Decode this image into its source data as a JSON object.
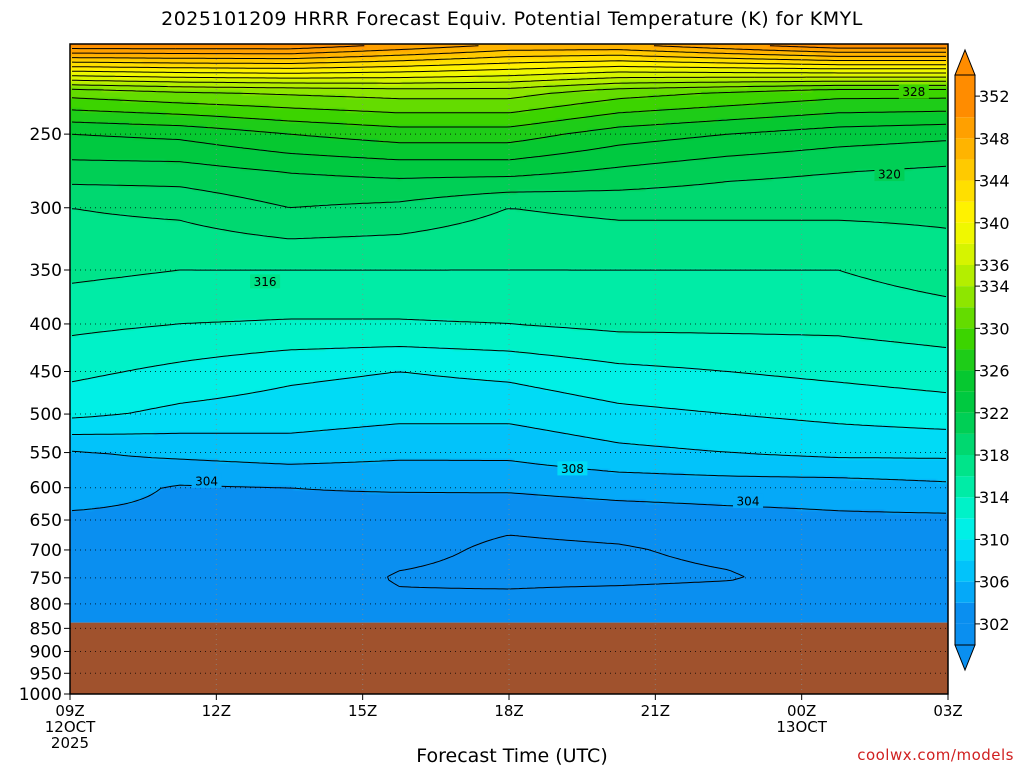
{
  "title": "2025101209 HRRR Forecast Equiv. Potential Temperature (K) for KMYL",
  "credit": "coolwx.com/models",
  "chart_data": {
    "type": "heatmap",
    "title": "2025101209 HRRR Forecast Equiv. Potential Temperature (K) for KMYL",
    "xlabel": "Forecast Time (UTC)",
    "ylabel": "",
    "y_axis": "pressure (hPa), reversed",
    "ylim": [
      1000,
      200
    ],
    "x_ticks": [
      {
        "hour": 0,
        "label": "09Z",
        "sub": [
          "12OCT",
          "2025"
        ]
      },
      {
        "hour": 3,
        "label": "12Z",
        "sub": []
      },
      {
        "hour": 6,
        "label": "15Z",
        "sub": []
      },
      {
        "hour": 9,
        "label": "18Z",
        "sub": []
      },
      {
        "hour": 12,
        "label": "21Z",
        "sub": []
      },
      {
        "hour": 15,
        "label": "00Z",
        "sub": [
          "13OCT"
        ]
      },
      {
        "hour": 18,
        "label": "03Z",
        "sub": []
      }
    ],
    "y_ticks": [
      250,
      300,
      350,
      400,
      450,
      500,
      550,
      600,
      650,
      700,
      750,
      800,
      850,
      900,
      950,
      1000
    ],
    "grid": true,
    "surface_pressure": 838,
    "contour_interval": 2,
    "colorbar": {
      "ticks": [
        302,
        306,
        310,
        314,
        318,
        322,
        326,
        330,
        334,
        336,
        340,
        344,
        348,
        352
      ],
      "bins": [
        {
          "min": 300,
          "max": 302,
          "color": "#0a8ff0"
        },
        {
          "min": 302,
          "max": 304,
          "color": "#0a8ff0"
        },
        {
          "min": 304,
          "max": 306,
          "color": "#05a9f8"
        },
        {
          "min": 306,
          "max": 308,
          "color": "#02c3fa"
        },
        {
          "min": 308,
          "max": 310,
          "color": "#00dbf6"
        },
        {
          "min": 310,
          "max": 312,
          "color": "#00f0e6"
        },
        {
          "min": 312,
          "max": 314,
          "color": "#00f2c8"
        },
        {
          "min": 314,
          "max": 316,
          "color": "#00eca6"
        },
        {
          "min": 316,
          "max": 318,
          "color": "#00e48a"
        },
        {
          "min": 318,
          "max": 320,
          "color": "#00d870"
        },
        {
          "min": 320,
          "max": 322,
          "color": "#00cf55"
        },
        {
          "min": 322,
          "max": 324,
          "color": "#00c940"
        },
        {
          "min": 324,
          "max": 326,
          "color": "#06c830"
        },
        {
          "min": 326,
          "max": 328,
          "color": "#1ecc18"
        },
        {
          "min": 328,
          "max": 330,
          "color": "#3cd400"
        },
        {
          "min": 330,
          "max": 332,
          "color": "#64dc00"
        },
        {
          "min": 332,
          "max": 334,
          "color": "#8ee600"
        },
        {
          "min": 334,
          "max": 336,
          "color": "#b4ee00"
        },
        {
          "min": 336,
          "max": 338,
          "color": "#d6f400"
        },
        {
          "min": 338,
          "max": 340,
          "color": "#f0f800"
        },
        {
          "min": 340,
          "max": 342,
          "color": "#fff200"
        },
        {
          "min": 342,
          "max": 344,
          "color": "#ffdf00"
        },
        {
          "min": 344,
          "max": 346,
          "color": "#ffca00"
        },
        {
          "min": 346,
          "max": 348,
          "color": "#ffb400"
        },
        {
          "min": 348,
          "max": 350,
          "color": "#ffa000"
        },
        {
          "min": 350,
          "max": 354,
          "color": "#ff8c00"
        }
      ],
      "below_color": "#0a8ff0",
      "above_color": "#ff8c00"
    },
    "ground_color": "#a0522d",
    "contour_labels": [
      {
        "value": 328,
        "hour": 17.3,
        "p": 225
      },
      {
        "value": 320,
        "hour": 16.8,
        "p": 276
      },
      {
        "value": 316,
        "hour": 4.0,
        "p": 360
      },
      {
        "value": 308,
        "hour": 10.3,
        "p": 572
      },
      {
        "value": 304,
        "hour": 2.8,
        "p": 590
      },
      {
        "value": 304,
        "hour": 13.9,
        "p": 620
      }
    ],
    "theta_e_levels": [
      {
        "p": 200,
        "values": [
          352,
          352,
          352,
          350,
          348,
          348,
          350,
          352,
          352
        ]
      },
      {
        "p": 225,
        "values": [
          331,
          332,
          332.5,
          333,
          333,
          331,
          330,
          329,
          329
        ]
      },
      {
        "p": 250,
        "values": [
          324,
          324.5,
          326,
          327,
          327,
          325,
          324,
          323,
          322.5
        ]
      },
      {
        "p": 275,
        "values": [
          321,
          321,
          322,
          322.5,
          322.5,
          321.5,
          320.5,
          320,
          319.5
        ]
      },
      {
        "p": 300,
        "values": [
          318,
          318.5,
          320,
          319.5,
          318,
          318.5,
          318.5,
          318.5,
          318.5
        ]
      },
      {
        "p": 350,
        "values": [
          316.5,
          316,
          316,
          316,
          316,
          316,
          316,
          316,
          317
        ]
      },
      {
        "p": 400,
        "values": [
          314.5,
          314,
          313.8,
          313.8,
          314,
          314.5,
          314.5,
          314.5,
          315
        ]
      },
      {
        "p": 450,
        "values": [
          312.5,
          311.5,
          310.5,
          310,
          310.5,
          311.5,
          312,
          312.5,
          313
        ]
      },
      {
        "p": 500,
        "values": [
          310.5,
          309.5,
          309,
          308.5,
          308.5,
          309.5,
          310,
          310.5,
          311
        ]
      },
      {
        "p": 550,
        "values": [
          305.8,
          306.5,
          307,
          306.5,
          306.5,
          307.5,
          308,
          308.5,
          308.5
        ]
      },
      {
        "p": 600,
        "values": [
          305,
          303.8,
          304,
          304.2,
          304.3,
          304.8,
          305,
          305,
          305.5
        ]
      },
      {
        "p": 650,
        "values": [
          303.6,
          303.6,
          303.4,
          302.8,
          302.4,
          302.8,
          303.2,
          303.6,
          303.6
        ]
      },
      {
        "p": 700,
        "values": [
          303.4,
          302.8,
          303.4,
          302.6,
          301.6,
          301.8,
          302.5,
          303.5,
          303.5
        ]
      },
      {
        "p": 750,
        "values": [
          302.8,
          303.2,
          303.4,
          301.8,
          301.4,
          301.4,
          301.8,
          303,
          303.4
        ]
      },
      {
        "p": 800,
        "values": [
          303.4,
          303.4,
          303.4,
          302.4,
          302.8,
          303.4,
          303.6,
          303.6,
          303.6
        ]
      },
      {
        "p": 850,
        "values": [
          303.6,
          303.6,
          303.6,
          303.6,
          303.6,
          303.6,
          303.6,
          303.6,
          303.6
        ]
      }
    ]
  }
}
